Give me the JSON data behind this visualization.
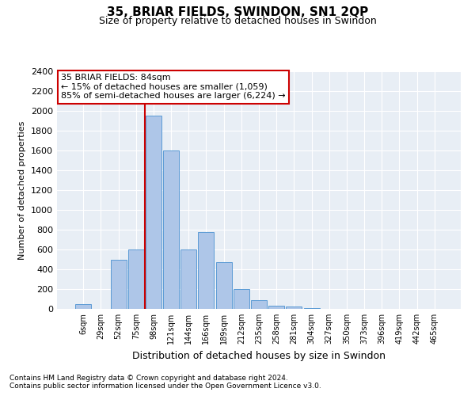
{
  "title": "35, BRIAR FIELDS, SWINDON, SN1 2QP",
  "subtitle": "Size of property relative to detached houses in Swindon",
  "xlabel": "Distribution of detached houses by size in Swindon",
  "ylabel": "Number of detached properties",
  "categories": [
    "6sqm",
    "29sqm",
    "52sqm",
    "75sqm",
    "98sqm",
    "121sqm",
    "144sqm",
    "166sqm",
    "189sqm",
    "212sqm",
    "235sqm",
    "258sqm",
    "281sqm",
    "304sqm",
    "327sqm",
    "350sqm",
    "373sqm",
    "396sqm",
    "419sqm",
    "442sqm",
    "465sqm"
  ],
  "values": [
    50,
    0,
    500,
    600,
    1950,
    1600,
    600,
    780,
    470,
    200,
    90,
    30,
    25,
    10,
    0,
    0,
    0,
    0,
    0,
    0,
    0
  ],
  "bar_color": "#aec6e8",
  "bar_edge_color": "#5b9bd5",
  "vline_x": 3.5,
  "vline_color": "#cc0000",
  "annotation_line1": "35 BRIAR FIELDS: 84sqm",
  "annotation_line2": "← 15% of detached houses are smaller (1,059)",
  "annotation_line3": "85% of semi-detached houses are larger (6,224) →",
  "annotation_box_color": "#ffffff",
  "annotation_box_edge": "#cc0000",
  "ylim": [
    0,
    2400
  ],
  "yticks": [
    0,
    200,
    400,
    600,
    800,
    1000,
    1200,
    1400,
    1600,
    1800,
    2000,
    2200,
    2400
  ],
  "bg_color": "#e8eef5",
  "footnote1": "Contains HM Land Registry data © Crown copyright and database right 2024.",
  "footnote2": "Contains public sector information licensed under the Open Government Licence v3.0."
}
